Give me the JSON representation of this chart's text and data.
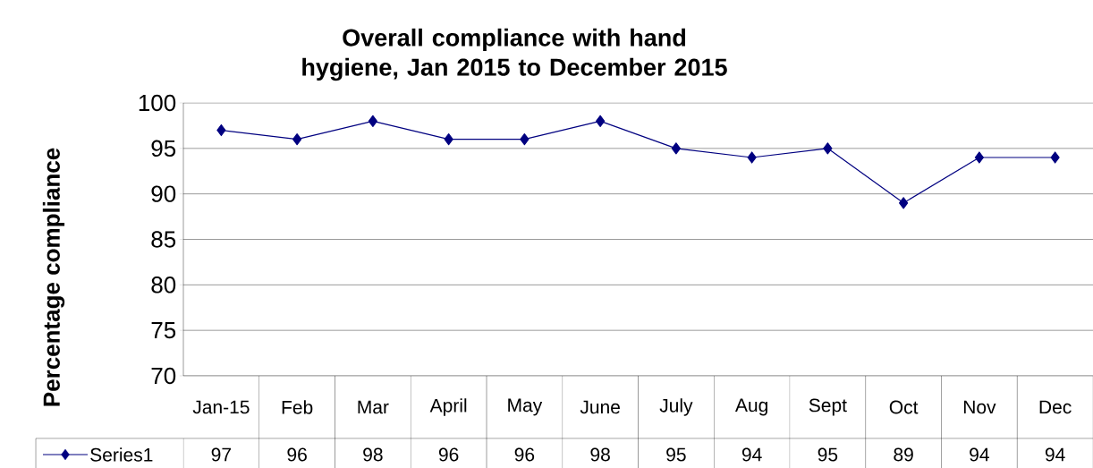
{
  "chart_data": {
    "type": "line",
    "title": "Overall compliance with hand hygiene, Jan 2015 to December 2015",
    "ylabel": "Percentage compliance",
    "categories": [
      "Jan-15",
      "Feb",
      "Mar",
      "April",
      "May",
      "June",
      "July",
      "Aug",
      "Sept",
      "Oct",
      "Nov",
      "Dec"
    ],
    "series": [
      {
        "name": "Series1",
        "color": "#000080",
        "values": [
          97,
          96,
          98,
          96,
          96,
          98,
          95,
          94,
          95,
          89,
          94,
          94
        ]
      }
    ],
    "ylim": [
      70,
      100
    ],
    "yticks": [
      70,
      75,
      80,
      85,
      90,
      95,
      100
    ],
    "grid": "y",
    "legend": "bottom",
    "marker": "diamond",
    "line_style": "solid",
    "data_labels": true
  }
}
